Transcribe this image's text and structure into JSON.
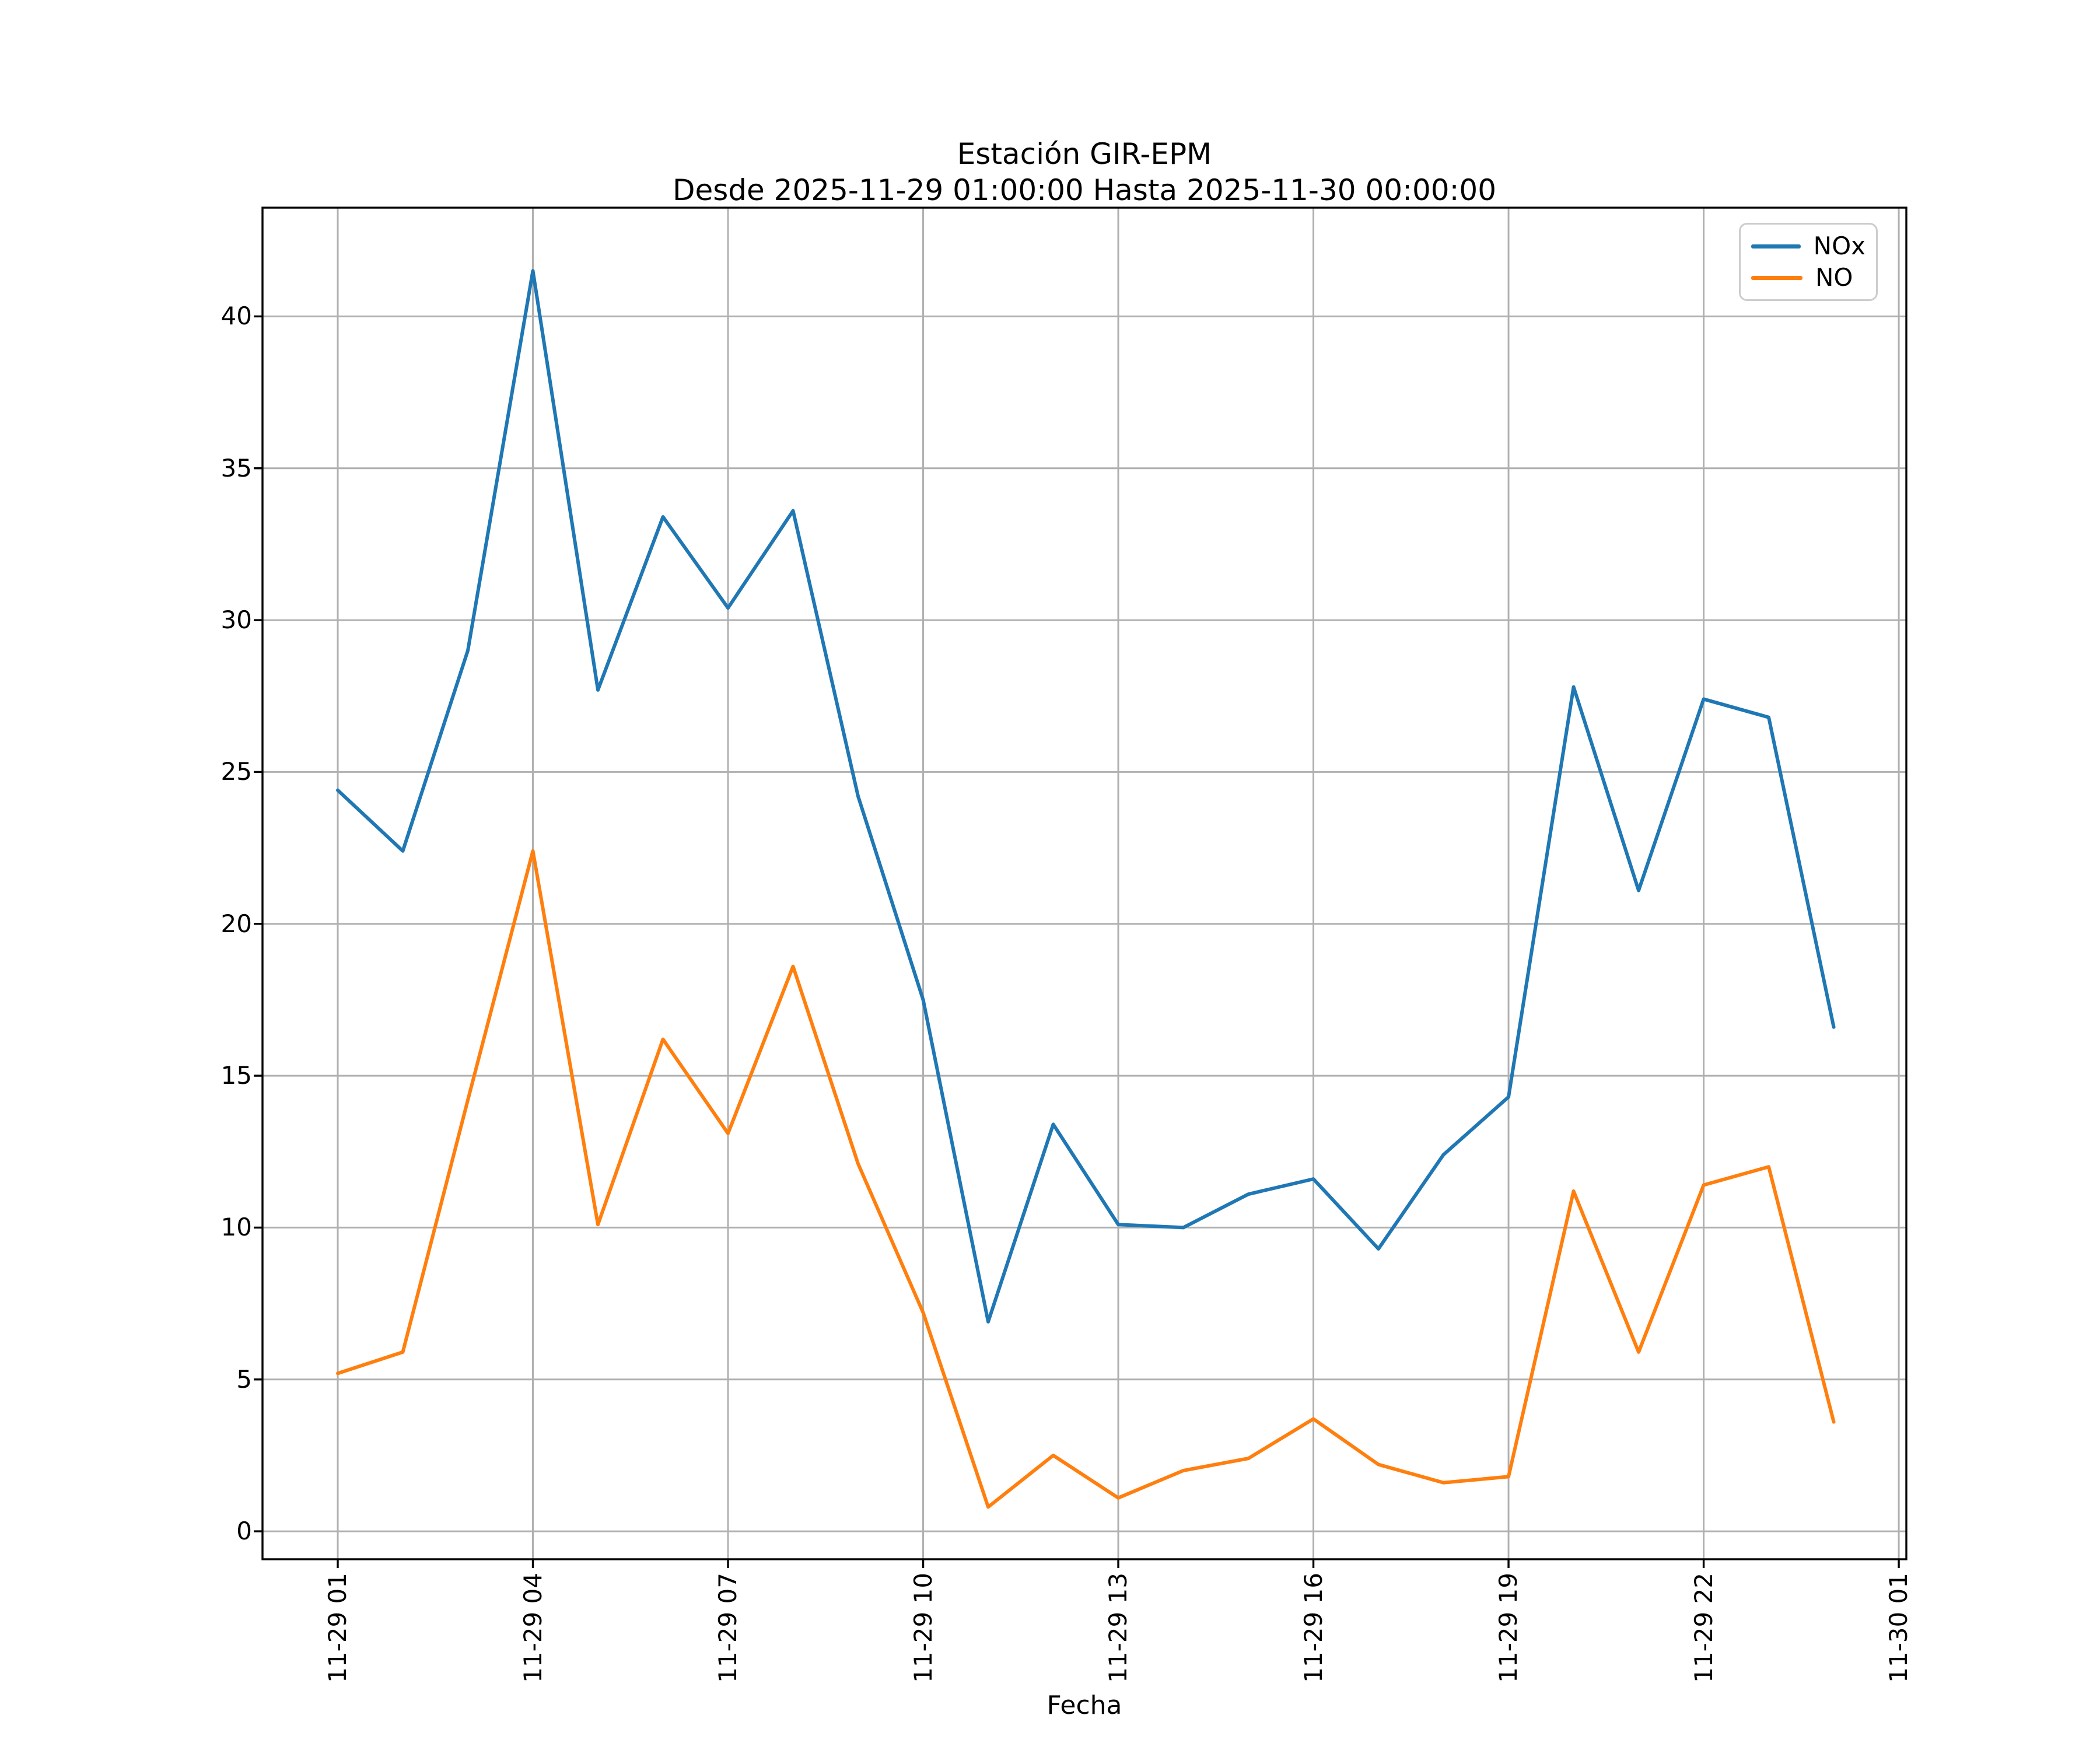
{
  "title": {
    "line1": "Estación GIR-EPM",
    "line2": "Desde 2025-11-29 01:00:00 Hasta 2025-11-30 00:00:00"
  },
  "legend": {
    "items": [
      {
        "label": "NOx",
        "color": "#1f77b4"
      },
      {
        "label": "NO",
        "color": "#ff7f0e"
      }
    ]
  },
  "chart_data": {
    "type": "line",
    "title": "Estación GIR-EPM",
    "subtitle": "Desde 2025-11-29 01:00:00 Hasta 2025-11-30 00:00:00",
    "xlabel": "Fecha",
    "ylabel": "",
    "x": [
      "2025-11-29 01:00",
      "2025-11-29 02:00",
      "2025-11-29 03:00",
      "2025-11-29 04:00",
      "2025-11-29 05:00",
      "2025-11-29 06:00",
      "2025-11-29 07:00",
      "2025-11-29 08:00",
      "2025-11-29 09:00",
      "2025-11-29 10:00",
      "2025-11-29 11:00",
      "2025-11-29 12:00",
      "2025-11-29 13:00",
      "2025-11-29 14:00",
      "2025-11-29 15:00",
      "2025-11-29 16:00",
      "2025-11-29 17:00",
      "2025-11-29 18:00",
      "2025-11-29 19:00",
      "2025-11-29 20:00",
      "2025-11-29 21:00",
      "2025-11-29 22:00",
      "2025-11-29 23:00",
      "2025-11-30 00:00"
    ],
    "series": [
      {
        "name": "NOx",
        "color": "#1f77b4",
        "values": [
          24.4,
          22.4,
          29.0,
          41.5,
          27.7,
          33.4,
          30.4,
          33.6,
          24.2,
          17.5,
          6.9,
          13.4,
          10.1,
          10.0,
          11.1,
          11.6,
          9.3,
          12.4,
          14.3,
          27.8,
          21.1,
          27.4,
          26.8,
          16.6
        ]
      },
      {
        "name": "NO",
        "color": "#ff7f0e",
        "values": [
          5.2,
          5.9,
          14.2,
          22.4,
          10.1,
          16.2,
          13.1,
          18.6,
          12.1,
          7.2,
          0.8,
          2.5,
          1.1,
          2.0,
          2.4,
          3.7,
          2.2,
          1.6,
          1.8,
          11.2,
          5.9,
          11.4,
          12.0,
          3.6
        ]
      }
    ],
    "x_ticks": {
      "positions": [
        0,
        3,
        6,
        9,
        12,
        15,
        18,
        21,
        24
      ],
      "labels": [
        "11-29 01",
        "11-29 04",
        "11-29 07",
        "11-29 10",
        "11-29 13",
        "11-29 16",
        "11-29 19",
        "11-29 22",
        "11-30 01"
      ],
      "rotation": 90
    },
    "y_ticks": [
      0,
      5,
      10,
      15,
      20,
      25,
      30,
      35,
      40
    ],
    "xlim": [
      -1.157,
      24.116
    ],
    "ylim": [
      -0.92,
      43.58
    ],
    "grid": true,
    "grid_color": "#b0b0b0",
    "spine_color": "#000000",
    "legend_position": "upper right"
  }
}
